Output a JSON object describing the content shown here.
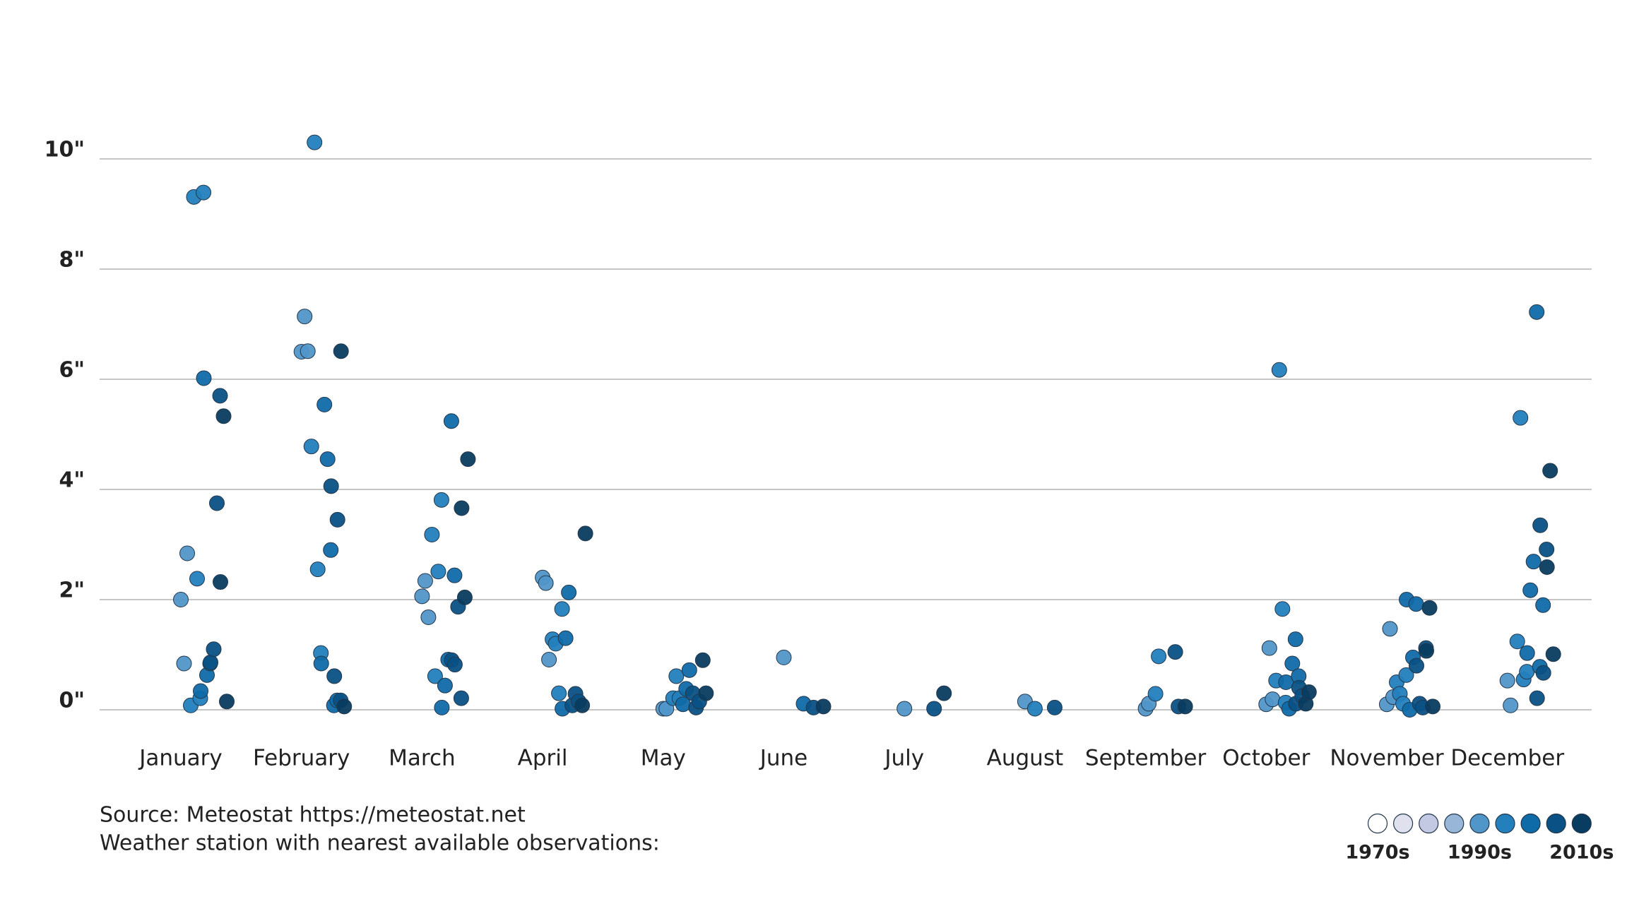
{
  "chart_data": {
    "type": "strip",
    "categories": [
      "January",
      "February",
      "March",
      "April",
      "May",
      "June",
      "July",
      "August",
      "September",
      "October",
      "November",
      "December"
    ],
    "ylim": [
      0,
      10
    ],
    "yticks": [
      {
        "value": 0,
        "label": "0\""
      },
      {
        "value": 2,
        "label": "2\""
      },
      {
        "value": 4,
        "label": "4\""
      },
      {
        "value": 6,
        "label": "6\""
      },
      {
        "value": 8,
        "label": "8\""
      },
      {
        "value": 10,
        "label": "10\""
      }
    ],
    "grid": true,
    "legend": "bottom-right",
    "annotations": [
      "Source: Meteostat https://meteostat.net",
      "Weather station with nearest available observations:"
    ],
    "series": [
      {
        "name": "1970s",
        "color": "#ffffff",
        "x": [],
        "values": []
      },
      {
        "name": null,
        "color": "#dfe1ef",
        "x": [],
        "values": []
      },
      {
        "name": null,
        "color": "#c3c9e2",
        "x": [],
        "values": []
      },
      {
        "name": null,
        "color": "#98b6d8",
        "x": [],
        "values": []
      },
      {
        "name": "1990s",
        "color": "#5196c9",
        "x": [
          "January",
          "January",
          "January",
          "February",
          "February",
          "February",
          "March",
          "March",
          "March",
          "April",
          "April",
          "April",
          "May",
          "May",
          "June",
          "July",
          "August",
          "September",
          "September",
          "October",
          "October",
          "October",
          "November",
          "November",
          "November",
          "December",
          "December"
        ],
        "values": [
          2.0,
          0.84,
          2.84,
          6.5,
          7.14,
          6.51,
          2.06,
          2.34,
          1.68,
          2.4,
          2.3,
          0.91,
          0.02,
          0.02,
          0.95,
          0.02,
          0.15,
          0.02,
          0.11,
          0.1,
          1.12,
          0.19,
          0.1,
          1.47,
          0.23,
          0.53,
          0.08
        ]
      },
      {
        "name": null,
        "color": "#2380bd",
        "x": [
          "January",
          "January",
          "January",
          "January",
          "January",
          "February",
          "February",
          "February",
          "February",
          "March",
          "March",
          "March",
          "March",
          "April",
          "April",
          "April",
          "April",
          "May",
          "May",
          "May",
          "August",
          "September",
          "September",
          "October",
          "October",
          "October",
          "October",
          "November",
          "November",
          "November",
          "November",
          "December",
          "December",
          "December",
          "December"
        ],
        "values": [
          0.08,
          9.31,
          2.38,
          0.21,
          9.39,
          4.78,
          10.3,
          2.55,
          1.03,
          3.18,
          0.61,
          2.51,
          3.81,
          1.28,
          1.2,
          0.3,
          1.83,
          0.21,
          0.61,
          0.21,
          0.02,
          0.29,
          0.97,
          0.53,
          6.17,
          1.83,
          0.13,
          0.5,
          0.29,
          0.11,
          0.63,
          1.24,
          5.3,
          0.55,
          0.69
        ]
      },
      {
        "name": null,
        "color": "#0f6aa8",
        "x": [
          "January",
          "January",
          "January",
          "January",
          "February",
          "February",
          "February",
          "February",
          "February",
          "February",
          "March",
          "March",
          "March",
          "March",
          "March",
          "April",
          "April",
          "April",
          "May",
          "May",
          "May",
          "June",
          "October",
          "October",
          "October",
          "October",
          "October",
          "November",
          "November",
          "November",
          "November",
          "December",
          "December",
          "December",
          "December",
          "December",
          "December"
        ],
        "values": [
          0.34,
          6.02,
          0.63,
          0.84,
          0.84,
          5.54,
          4.55,
          2.9,
          0.08,
          0.17,
          0.04,
          0.44,
          0.91,
          5.24,
          2.44,
          0.02,
          1.3,
          2.13,
          0.1,
          0.38,
          0.72,
          0.11,
          0.5,
          0.02,
          0.84,
          1.28,
          0.61,
          2.0,
          0,
          0.95,
          1.92,
          1.03,
          2.17,
          2.69,
          7.22,
          0.78,
          1.9
        ]
      },
      {
        "name": null,
        "color": "#0a5185",
        "x": [
          "January",
          "January",
          "January",
          "January",
          "February",
          "February",
          "February",
          "February",
          "March",
          "March",
          "March",
          "March",
          "April",
          "April",
          "April",
          "May",
          "May",
          "May",
          "June",
          "July",
          "August",
          "September",
          "September",
          "October",
          "October",
          "October",
          "November",
          "November",
          "November",
          "November",
          "December",
          "December",
          "December",
          "December"
        ],
        "values": [
          0.86,
          1.1,
          3.75,
          5.7,
          4.06,
          0.61,
          3.45,
          0.17,
          0.9,
          0.82,
          1.87,
          0.21,
          0.08,
          0.29,
          0.15,
          0.3,
          0.04,
          0.15,
          0.04,
          0.02,
          0.04,
          1.05,
          0.06,
          0.11,
          0.4,
          0.25,
          0.8,
          0.11,
          0.04,
          1.12,
          0.21,
          3.35,
          0.67,
          2.91
        ]
      },
      {
        "name": "2010s",
        "color": "#083c60",
        "x": [
          "January",
          "January",
          "January",
          "February",
          "February",
          "March",
          "March",
          "March",
          "April",
          "April",
          "May",
          "May",
          "June",
          "July",
          "September",
          "October",
          "October",
          "November",
          "November",
          "November",
          "December",
          "December",
          "December"
        ],
        "values": [
          2.32,
          5.33,
          0.15,
          6.51,
          0.06,
          3.66,
          2.04,
          4.55,
          0.08,
          3.2,
          0.9,
          0.3,
          0.06,
          0.3,
          0.06,
          0.11,
          0.32,
          1.07,
          1.85,
          0.06,
          2.59,
          4.34,
          1.01
        ]
      }
    ]
  }
}
